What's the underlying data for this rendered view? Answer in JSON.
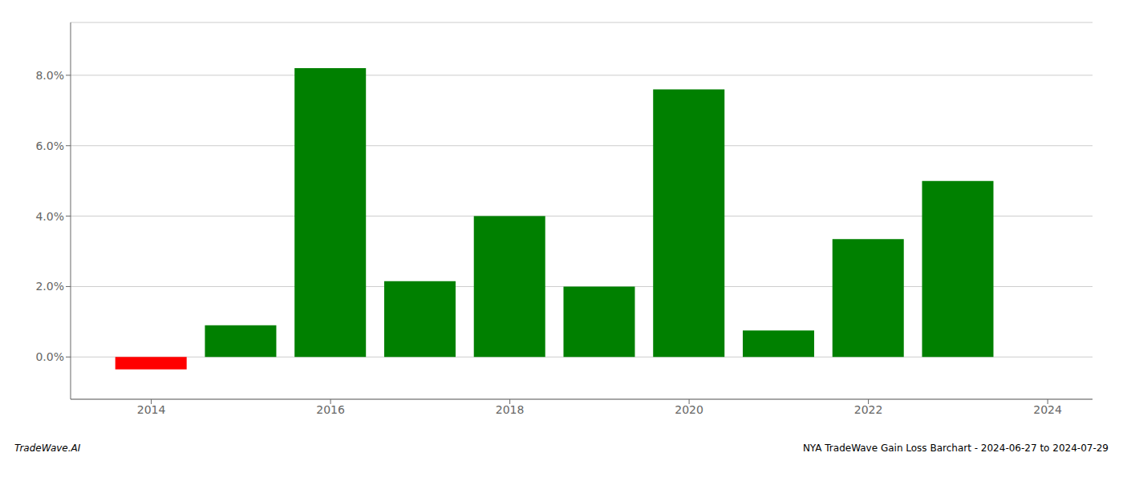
{
  "chart_data": {
    "type": "bar",
    "x": [
      2014,
      2015,
      2016,
      2017,
      2018,
      2019,
      2020,
      2021,
      2022,
      2023
    ],
    "values": [
      -0.0035,
      0.009,
      0.082,
      0.0215,
      0.04,
      0.02,
      0.076,
      0.0075,
      0.0335,
      0.05
    ],
    "colors": [
      "#ff0000",
      "#008000",
      "#008000",
      "#008000",
      "#008000",
      "#008000",
      "#008000",
      "#008000",
      "#008000",
      "#008000"
    ],
    "xlim": [
      2013.1,
      2024.5
    ],
    "xticks": [
      2014,
      2016,
      2018,
      2020,
      2022,
      2024
    ],
    "ylim": [
      -0.012,
      0.095
    ],
    "yticks": [
      {
        "value": 0,
        "label": "0.0%"
      },
      {
        "value": 0.02,
        "label": "2.0%"
      },
      {
        "value": 0.04,
        "label": "4.0%"
      },
      {
        "value": 0.06,
        "label": "6.0%"
      },
      {
        "value": 0.08,
        "label": "8.0%"
      }
    ],
    "grid": true,
    "annotations": [
      "TradeWave.AI",
      "NYA TradeWave Gain Loss Barchart - 2024-06-27 to 2024-07-29"
    ]
  }
}
